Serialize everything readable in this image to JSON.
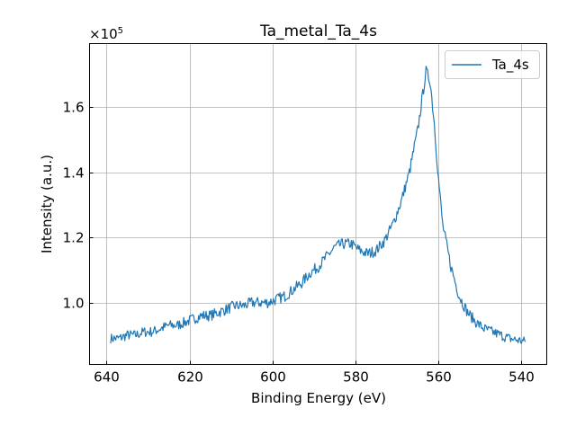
{
  "chart_data": {
    "type": "line",
    "title": "Ta_metal_Ta_4s",
    "xlabel": "Binding Energy (eV)",
    "ylabel": "Intensity (a.u.)",
    "y_offset_label": "×10",
    "y_offset_exp": "5",
    "xlim": [
      644.1,
      533.9
    ],
    "ylim": [
      0.81,
      1.795
    ],
    "x_inverted": true,
    "grid": true,
    "legend_position": "top-right",
    "x_ticks": [
      640,
      620,
      600,
      580,
      560,
      540
    ],
    "x_tick_labels": [
      "640",
      "620",
      "600",
      "580",
      "560",
      "540"
    ],
    "y_ticks": [
      1.0,
      1.2,
      1.4,
      1.6
    ],
    "y_tick_labels": [
      "1.0",
      "1.2",
      "1.4",
      "1.6"
    ],
    "color": "#1f77b4",
    "series": [
      {
        "name": "Ta_4s",
        "x": [
          639,
          637,
          635,
          633,
          631,
          629,
          627,
          625,
          623,
          621,
          619,
          617,
          615,
          613,
          611,
          609,
          607,
          605,
          603,
          601,
          599,
          597,
          595,
          593,
          591,
          589,
          587,
          585,
          583,
          581,
          579,
          577,
          575,
          573,
          571,
          569,
          567,
          565,
          564,
          563,
          562,
          561,
          560,
          559,
          557,
          555,
          553,
          551,
          549,
          547,
          545,
          543,
          541,
          539
        ],
        "y": [
          0.89,
          0.89,
          0.9,
          0.9,
          0.91,
          0.91,
          0.92,
          0.93,
          0.93,
          0.94,
          0.95,
          0.96,
          0.96,
          0.97,
          0.98,
          0.99,
          0.99,
          1.0,
          1.0,
          1.0,
          1.01,
          1.02,
          1.04,
          1.06,
          1.09,
          1.11,
          1.14,
          1.17,
          1.18,
          1.18,
          1.16,
          1.15,
          1.16,
          1.19,
          1.24,
          1.31,
          1.4,
          1.53,
          1.62,
          1.71,
          1.68,
          1.55,
          1.38,
          1.24,
          1.11,
          1.02,
          0.97,
          0.94,
          0.92,
          0.91,
          0.9,
          0.89,
          0.885,
          0.88
        ]
      }
    ]
  }
}
